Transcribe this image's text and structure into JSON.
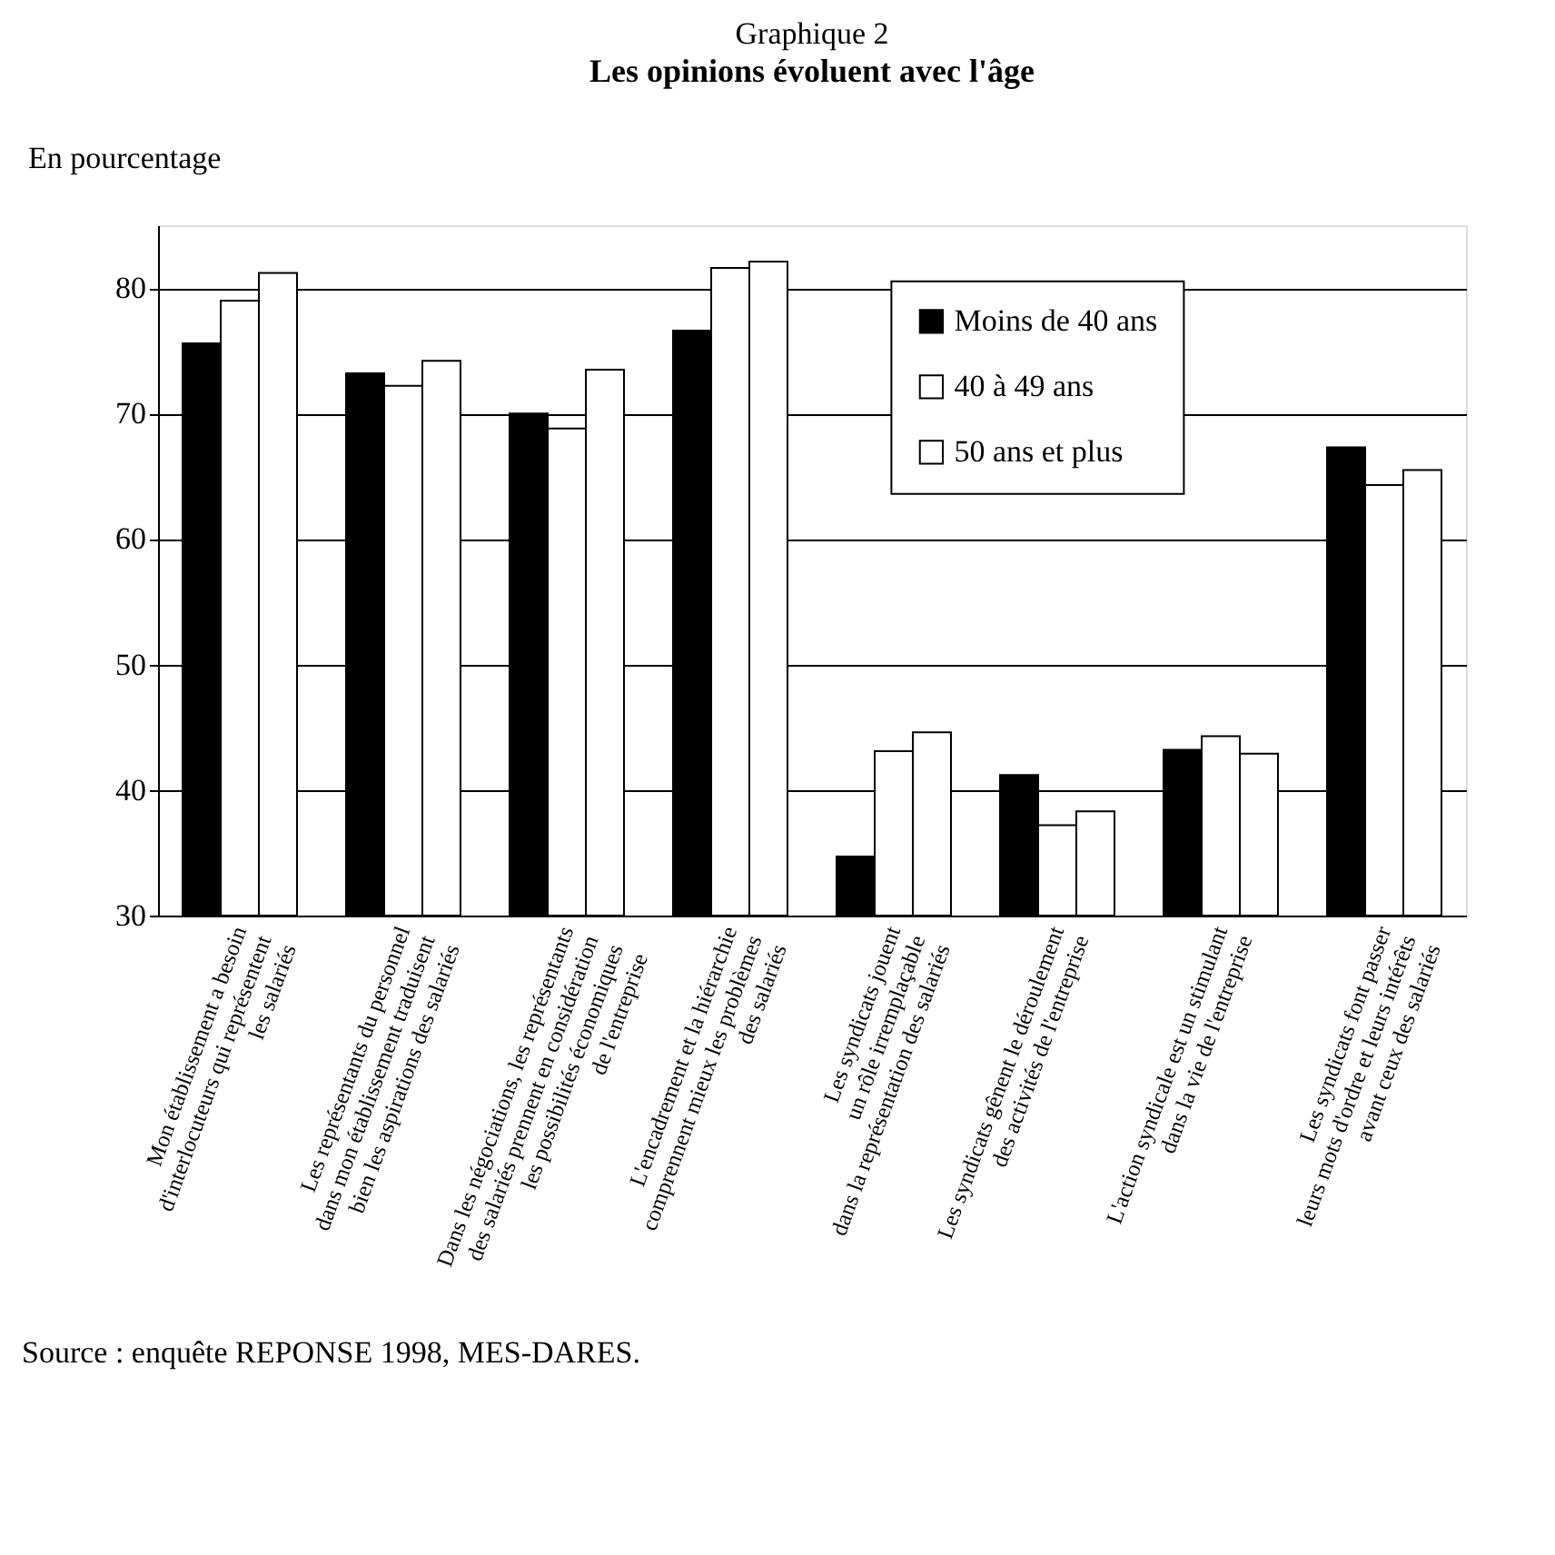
{
  "chart_data": {
    "type": "bar",
    "title": "Graphique 2",
    "subtitle": "Les opinions évoluent avec l'âge",
    "ylabel": "En pourcentage",
    "categories": [
      "Mon établissement a besoin\nd'interlocuteurs qui représentent\nles salariés",
      "Les représentants du personnel\ndans mon établissement traduisent\nbien les aspirations des salariés",
      "Dans les négociations, les représentants\ndes salariés prennent en considération\nles possibilités économiques\nde l'entreprise",
      "L'encadrement et la hiérarchie\ncomprennent mieux les problèmes\ndes salariés",
      "Les syndicats jouent\nun rôle irremplaçable\ndans la représentation des salariés",
      "Les syndicats gênent le déroulement\ndes activités de l'entreprise",
      "L'action syndicale est un stimulant\ndans la vie de l'entreprise",
      "Les syndicats font passer\nleurs mots d'ordre et leurs intérêts\navant ceux des salariés"
    ],
    "series": [
      {
        "name": "Moins de 40 ans",
        "color": "#000000",
        "values": [
          75.6,
          73.2,
          70.0,
          76.6,
          34.7,
          41.2,
          43.2,
          67.3
        ]
      },
      {
        "name": "40 à 49 ans",
        "color": "#ffffff",
        "values": [
          79.0,
          72.2,
          68.8,
          81.6,
          43.1,
          37.2,
          44.3,
          64.3
        ]
      },
      {
        "name": "50 ans et plus",
        "color": "#ffffff",
        "values": [
          81.2,
          74.2,
          73.5,
          82.1,
          44.6,
          38.3,
          42.9,
          65.5
        ]
      }
    ],
    "ylim": [
      30,
      85
    ],
    "yticks": [
      30,
      40,
      50,
      60,
      70,
      80
    ],
    "grid": "y",
    "legend": "top",
    "annotations": [
      "Source : enquête REPONSE 1998, MES-DARES."
    ]
  }
}
